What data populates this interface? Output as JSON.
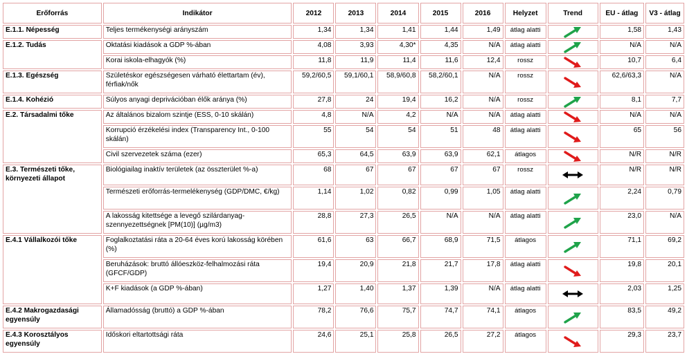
{
  "headers": [
    "Erőforrás",
    "Indikátor",
    "2012",
    "2013",
    "2014",
    "2015",
    "2016",
    "Helyzet",
    "Trend",
    "EU - átlag",
    "V3 - átlag"
  ],
  "rows": [
    {
      "res": "E.1.1. Népesség",
      "span": 1,
      "cls": "h1",
      "ind": "Teljes termékenységi arányszám",
      "y2012": "1,34",
      "y2013": "1,34",
      "y2014": "1,41",
      "y2015": "1,44",
      "y2016": "1,49",
      "hely": "átlag alatti",
      "trend": "up",
      "eu": "1,58",
      "v3": "1,43"
    },
    {
      "res": "E.1.2. Tudás",
      "span": 2,
      "cls": "h1",
      "ind": "Oktatási kiadások a GDP %-ában",
      "y2012": "4,08",
      "y2013": "3,93",
      "y2014": "4,30*",
      "y2015": "4,35",
      "y2016": "N/A",
      "hely": "átlag alatti",
      "trend": "up",
      "eu": "N/A",
      "v3": "N/A"
    },
    {
      "res": null,
      "cls": "h1",
      "ind": "Korai iskola-elhagyók (%)",
      "y2012": "11,8",
      "y2013": "11,9",
      "y2014": "11,4",
      "y2015": "11,6",
      "y2016": "12,4",
      "hely": "rossz",
      "trend": "down",
      "eu": "10,7",
      "v3": "6,4"
    },
    {
      "res": "E.1.3. Egészség",
      "span": 1,
      "cls": "h2",
      "ind": "Születéskor egészségesen várható élettartam (év), férfiak/nők",
      "y2012": "59,2/60,5",
      "y2013": "59,1/60,1",
      "y2014": "58,9/60,8",
      "y2015": "58,2/60,1",
      "y2016": "N/A",
      "hely": "rossz",
      "trend": "down",
      "eu": "62,6/63,3",
      "v3": "N/A"
    },
    {
      "res": "E.1.4. Kohézió",
      "span": 1,
      "cls": "h1",
      "ind": "Súlyos anyagi deprivációban élők aránya (%)",
      "y2012": "27,8",
      "y2013": "24",
      "y2014": "19,4",
      "y2015": "16,2",
      "y2016": "N/A",
      "hely": "rossz",
      "trend": "up",
      "eu": "8,1",
      "v3": "7,7"
    },
    {
      "res": "E.2. Társadalmi tőke",
      "span": 3,
      "cls": "h1",
      "ind": "Az általános bizalom szintje (ESS, 0-10 skálán)",
      "y2012": "4,8",
      "y2013": "N/A",
      "y2014": "4,2",
      "y2015": "N/A",
      "y2016": "N/A",
      "hely": "átlag alatti",
      "trend": "down",
      "eu": "N/A",
      "v3": "N/A"
    },
    {
      "res": null,
      "cls": "h2",
      "ind": "Korrupció érzékelési index (Transparency Int., 0-100 skálán)",
      "y2012": "55",
      "y2013": "54",
      "y2014": "54",
      "y2015": "51",
      "y2016": "48",
      "hely": "átlag alatti",
      "trend": "down",
      "eu": "65",
      "v3": "56"
    },
    {
      "res": null,
      "cls": "h1",
      "ind": "Civil szervezetek száma (ezer)",
      "y2012": "65,3",
      "y2013": "64,5",
      "y2014": "63,9",
      "y2015": "63,9",
      "y2016": "62,1",
      "hely": "átlagos",
      "trend": "down",
      "eu": "N/R",
      "v3": "N/R"
    },
    {
      "res": "E.3. Természeti tőke, környezeti állapot",
      "span": 3,
      "cls": "h23",
      "ind": "Biológiailag inaktív területek (az összterület %-a)",
      "y2012": "68",
      "y2013": "67",
      "y2014": "67",
      "y2015": "67",
      "y2016": "67",
      "hely": "rossz",
      "trend": "flat",
      "eu": "N/R",
      "v3": "N/R"
    },
    {
      "res": null,
      "cls": "h2",
      "ind": "Természeti erőforrás-termelékenység (GDP/DMC, €/kg)",
      "y2012": "1,14",
      "y2013": "1,02",
      "y2014": "0,82",
      "y2015": "0,99",
      "y2016": "1,05",
      "hely": "átlag alatti",
      "trend": "up",
      "eu": "2,24",
      "v3": "0,79"
    },
    {
      "res": null,
      "cls": "h2",
      "ind": "A lakosság kitettsége a levegő szilárdanyag-szennyezettségnek [PM(10)] (µg/m3)",
      "y2012": "28,8",
      "y2013": "27,3",
      "y2014": "26,5",
      "y2015": "N/A",
      "y2016": "N/A",
      "hely": "átlag alatti",
      "trend": "up",
      "eu": "23,0",
      "v3": "N/A"
    },
    {
      "res": "E.4.1 Vállalkozói tőke",
      "span": 3,
      "cls": "h2",
      "ind": "Foglalkoztatási ráta a 20-64 éves korú lakosság körében (%)",
      "y2012": "61,6",
      "y2013": "63",
      "y2014": "66,7",
      "y2015": "68,9",
      "y2016": "71,5",
      "hely": "átlagos",
      "trend": "up",
      "eu": "71,1",
      "v3": "69,2"
    },
    {
      "res": null,
      "cls": "h2",
      "ind": "Beruházások: bruttó állóeszköz-felhalmozási ráta (GFCF/GDP)",
      "y2012": "19,4",
      "y2013": "20,9",
      "y2014": "21,8",
      "y2015": "21,7",
      "y2016": "17,8",
      "hely": "átlag alatti",
      "trend": "down",
      "eu": "19,8",
      "v3": "20,1"
    },
    {
      "res": null,
      "cls": "h23",
      "ind": "K+F kiadások (a GDP %-ában)",
      "y2012": "1,27",
      "y2013": "1,40",
      "y2014": "1,37",
      "y2015": "1,39",
      "y2016": "N/A",
      "hely": "átlag alatti",
      "trend": "flat",
      "eu": "2,03",
      "v3": "1,25"
    },
    {
      "res": "E.4.2 Makrogazdasági egyensúly",
      "span": 1,
      "cls": "h2",
      "ind": "Államadósság (bruttó) a GDP %-ában",
      "y2012": "78,2",
      "y2013": "76,6",
      "y2014": "75,7",
      "y2015": "74,7",
      "y2016": "74,1",
      "hely": "átlagos",
      "trend": "up",
      "eu": "83,5",
      "v3": "49,2"
    },
    {
      "res": "E.4.3 Korosztályos egyensúly",
      "span": 1,
      "cls": "h2",
      "ind": "Időskori eltartottsági ráta",
      "y2012": "24,6",
      "y2013": "25,1",
      "y2014": "25,8",
      "y2015": "26,5",
      "y2016": "27,2",
      "hely": "átlagos",
      "trend": "down",
      "eu": "29,3",
      "v3": "23,7"
    }
  ],
  "trend_icons": {
    "up": "arrow-up-right-icon",
    "down": "arrow-down-right-icon",
    "flat": "double-arrow-horizontal-icon"
  },
  "colors": {
    "border": "#e2a3a3",
    "up": "#1fa34a",
    "down": "#e01b1b",
    "flat": "#000000"
  }
}
